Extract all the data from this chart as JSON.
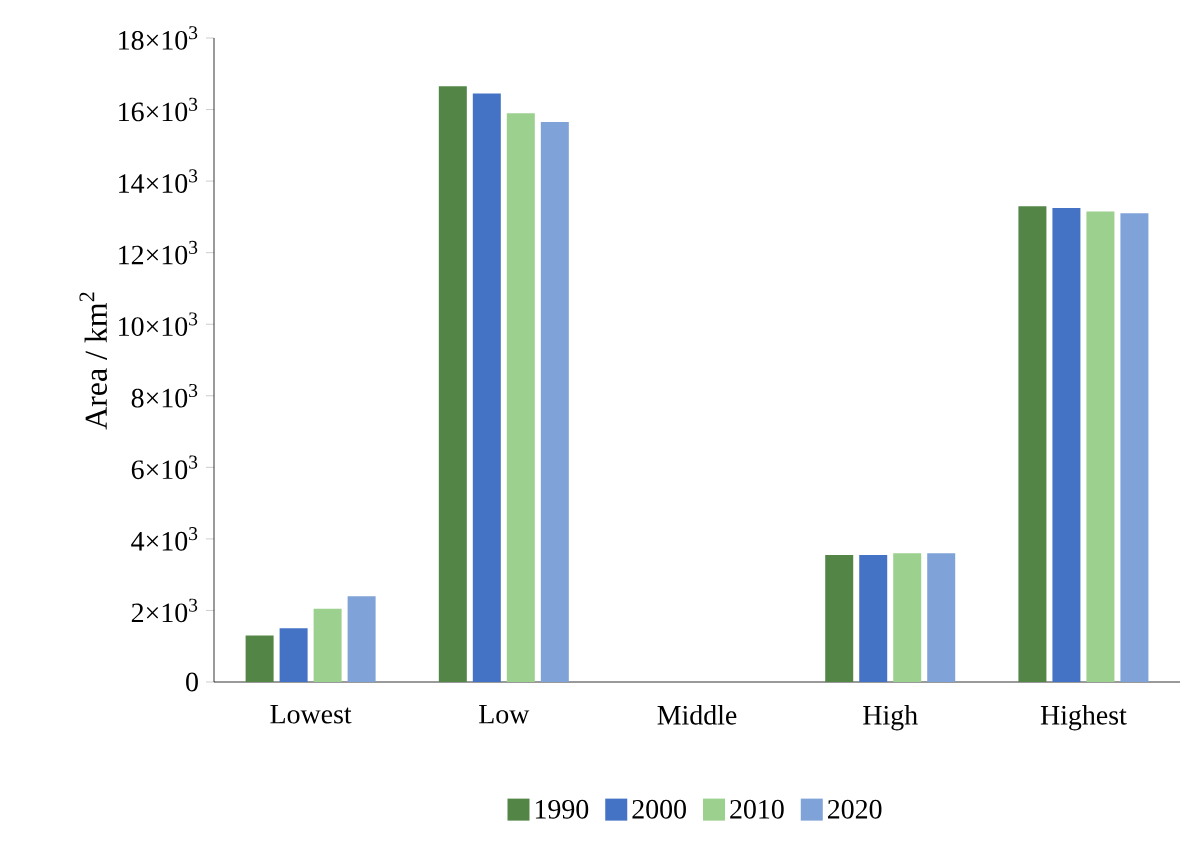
{
  "chart_data": {
    "type": "bar",
    "ylabel": "Area / km$^{2}$",
    "categories": [
      "Lowest",
      "Low",
      "Middle",
      "High",
      "Highest"
    ],
    "series": [
      {
        "name": "1990",
        "color": "#538646",
        "values": [
          1300,
          16650,
          0,
          3550,
          13300
        ]
      },
      {
        "name": "2000",
        "color": "#4472c4",
        "values": [
          1500,
          16450,
          0,
          3550,
          13250
        ]
      },
      {
        "name": "2010",
        "color": "#9bd08e",
        "values": [
          2050,
          15900,
          0,
          3600,
          13150
        ]
      },
      {
        "name": "2020",
        "color": "#7fa3d8",
        "values": [
          2400,
          15650,
          0,
          3600,
          13100
        ]
      }
    ],
    "ylim": [
      0,
      18000
    ],
    "yticks": [
      0,
      {
        "value": 2000,
        "label": "2×10$^{3}$"
      },
      {
        "value": 4000,
        "label": "4×10$^{3}$"
      },
      {
        "value": 6000,
        "label": "6×10$^{3}$"
      },
      {
        "value": 8000,
        "label": "8×10$^{3}$"
      },
      {
        "value": 10000,
        "label": "10×10$^{3}$"
      },
      {
        "value": 12000,
        "label": "12×10$^{3}$"
      },
      {
        "value": 14000,
        "label": "14×10$^{3}$"
      },
      {
        "value": 16000,
        "label": "16×10$^{3}$"
      },
      {
        "value": 18000,
        "label": "18×10$^{3}$"
      }
    ],
    "grid": false,
    "legend": "bottom"
  }
}
